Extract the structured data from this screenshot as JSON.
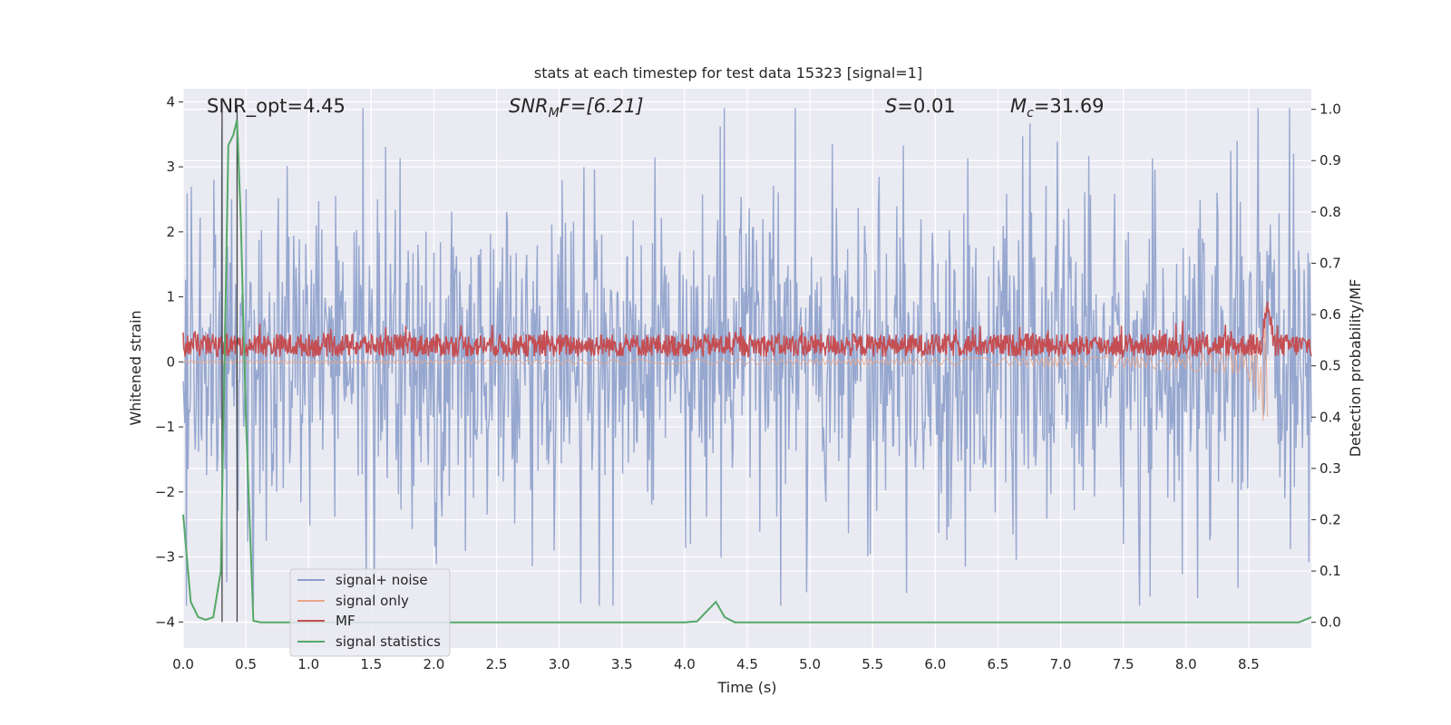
{
  "chart_data": {
    "type": "line",
    "title": "stats at each timestep for test data 15323 [signal=1]",
    "xlabel": "Time (s)",
    "ylabel_left": "Whitened strain",
    "ylabel_right": "Detection probability/MF",
    "xlim": [
      0.0,
      9.0
    ],
    "ylim_left": [
      -4.4,
      4.2
    ],
    "ylim_right": [
      -0.05,
      1.04
    ],
    "x_ticks": [
      "0.0",
      "0.5",
      "1.0",
      "1.5",
      "2.0",
      "2.5",
      "3.0",
      "3.5",
      "4.0",
      "4.5",
      "5.0",
      "5.5",
      "6.0",
      "6.5",
      "7.0",
      "7.5",
      "8.0",
      "8.5"
    ],
    "y_left_ticks": [
      "4",
      "3",
      "2",
      "1",
      "0",
      "−1",
      "−2",
      "−3",
      "−4"
    ],
    "y_right_ticks": [
      "1.0",
      "0.9",
      "0.8",
      "0.7",
      "0.6",
      "0.5",
      "0.4",
      "0.3",
      "0.2",
      "0.1",
      "0.0"
    ],
    "annotations": {
      "snr_opt": "SNR_opt=4.45",
      "snr_mf_sym": "SNR",
      "snr_mf_sub": "M",
      "snr_mf_rest": "F=[6.21]",
      "s_sym": "S",
      "s_rest": "=0.01",
      "mc_sym": "M",
      "mc_sub": "c",
      "mc_rest": "=31.69"
    },
    "vertical_lines_x": [
      0.31,
      0.43
    ],
    "grid": true,
    "legend_location": "lower-left",
    "series": [
      {
        "name": "signal+ noise",
        "axis": "left",
        "color": "#8da0cb",
        "description": "whitened noisy strain, roughly within -3.7 to 3.9"
      },
      {
        "name": "signal only",
        "axis": "left",
        "color": "#e8a68a",
        "chirp_end_time": 8.65,
        "peak_amplitude": 1.0
      },
      {
        "name": "MF",
        "axis": "right",
        "color": "#c44e52",
        "baseline": 0.54,
        "spike_time": 8.65,
        "spike_value": 0.64
      },
      {
        "name": "signal statistics",
        "axis": "right",
        "color": "#55a868",
        "x": [
          0.0,
          0.06,
          0.12,
          0.18,
          0.24,
          0.3,
          0.36,
          0.4,
          0.43,
          0.46,
          0.5,
          0.56,
          0.62,
          4.0,
          4.1,
          4.17,
          4.25,
          4.32,
          4.4,
          8.9,
          9.0
        ],
        "values": [
          0.21,
          0.04,
          0.01,
          0.005,
          0.01,
          0.1,
          0.93,
          0.95,
          0.98,
          0.78,
          0.4,
          0.003,
          0.0,
          0.0,
          0.002,
          0.02,
          0.04,
          0.01,
          0.0,
          0.0,
          0.01
        ]
      }
    ]
  }
}
